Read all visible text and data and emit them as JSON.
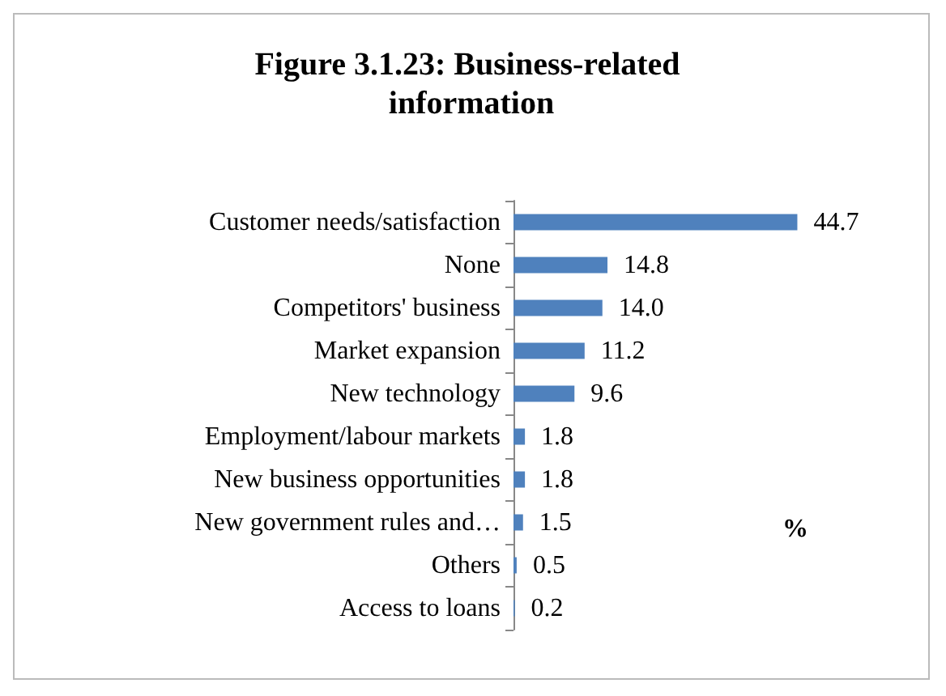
{
  "chart_data": {
    "type": "bar",
    "orientation": "horizontal",
    "title": "Figure 3.1.23: Business-related information",
    "xlabel": "%",
    "categories": [
      "Customer needs/satisfaction",
      "None",
      "Competitors' business",
      "Market expansion",
      "New technology",
      "Employment/labour markets",
      "New business opportunities",
      "New government rules and…",
      "Others",
      "Access to loans"
    ],
    "values": [
      44.7,
      14.8,
      14.0,
      11.2,
      9.6,
      1.8,
      1.8,
      1.5,
      0.5,
      0.2
    ],
    "value_labels": [
      "44.7",
      "14.8",
      "14.0",
      "11.2",
      "9.6",
      "1.8",
      "1.8",
      "1.5",
      "0.5",
      "0.2"
    ],
    "color": "#4f81bd"
  }
}
